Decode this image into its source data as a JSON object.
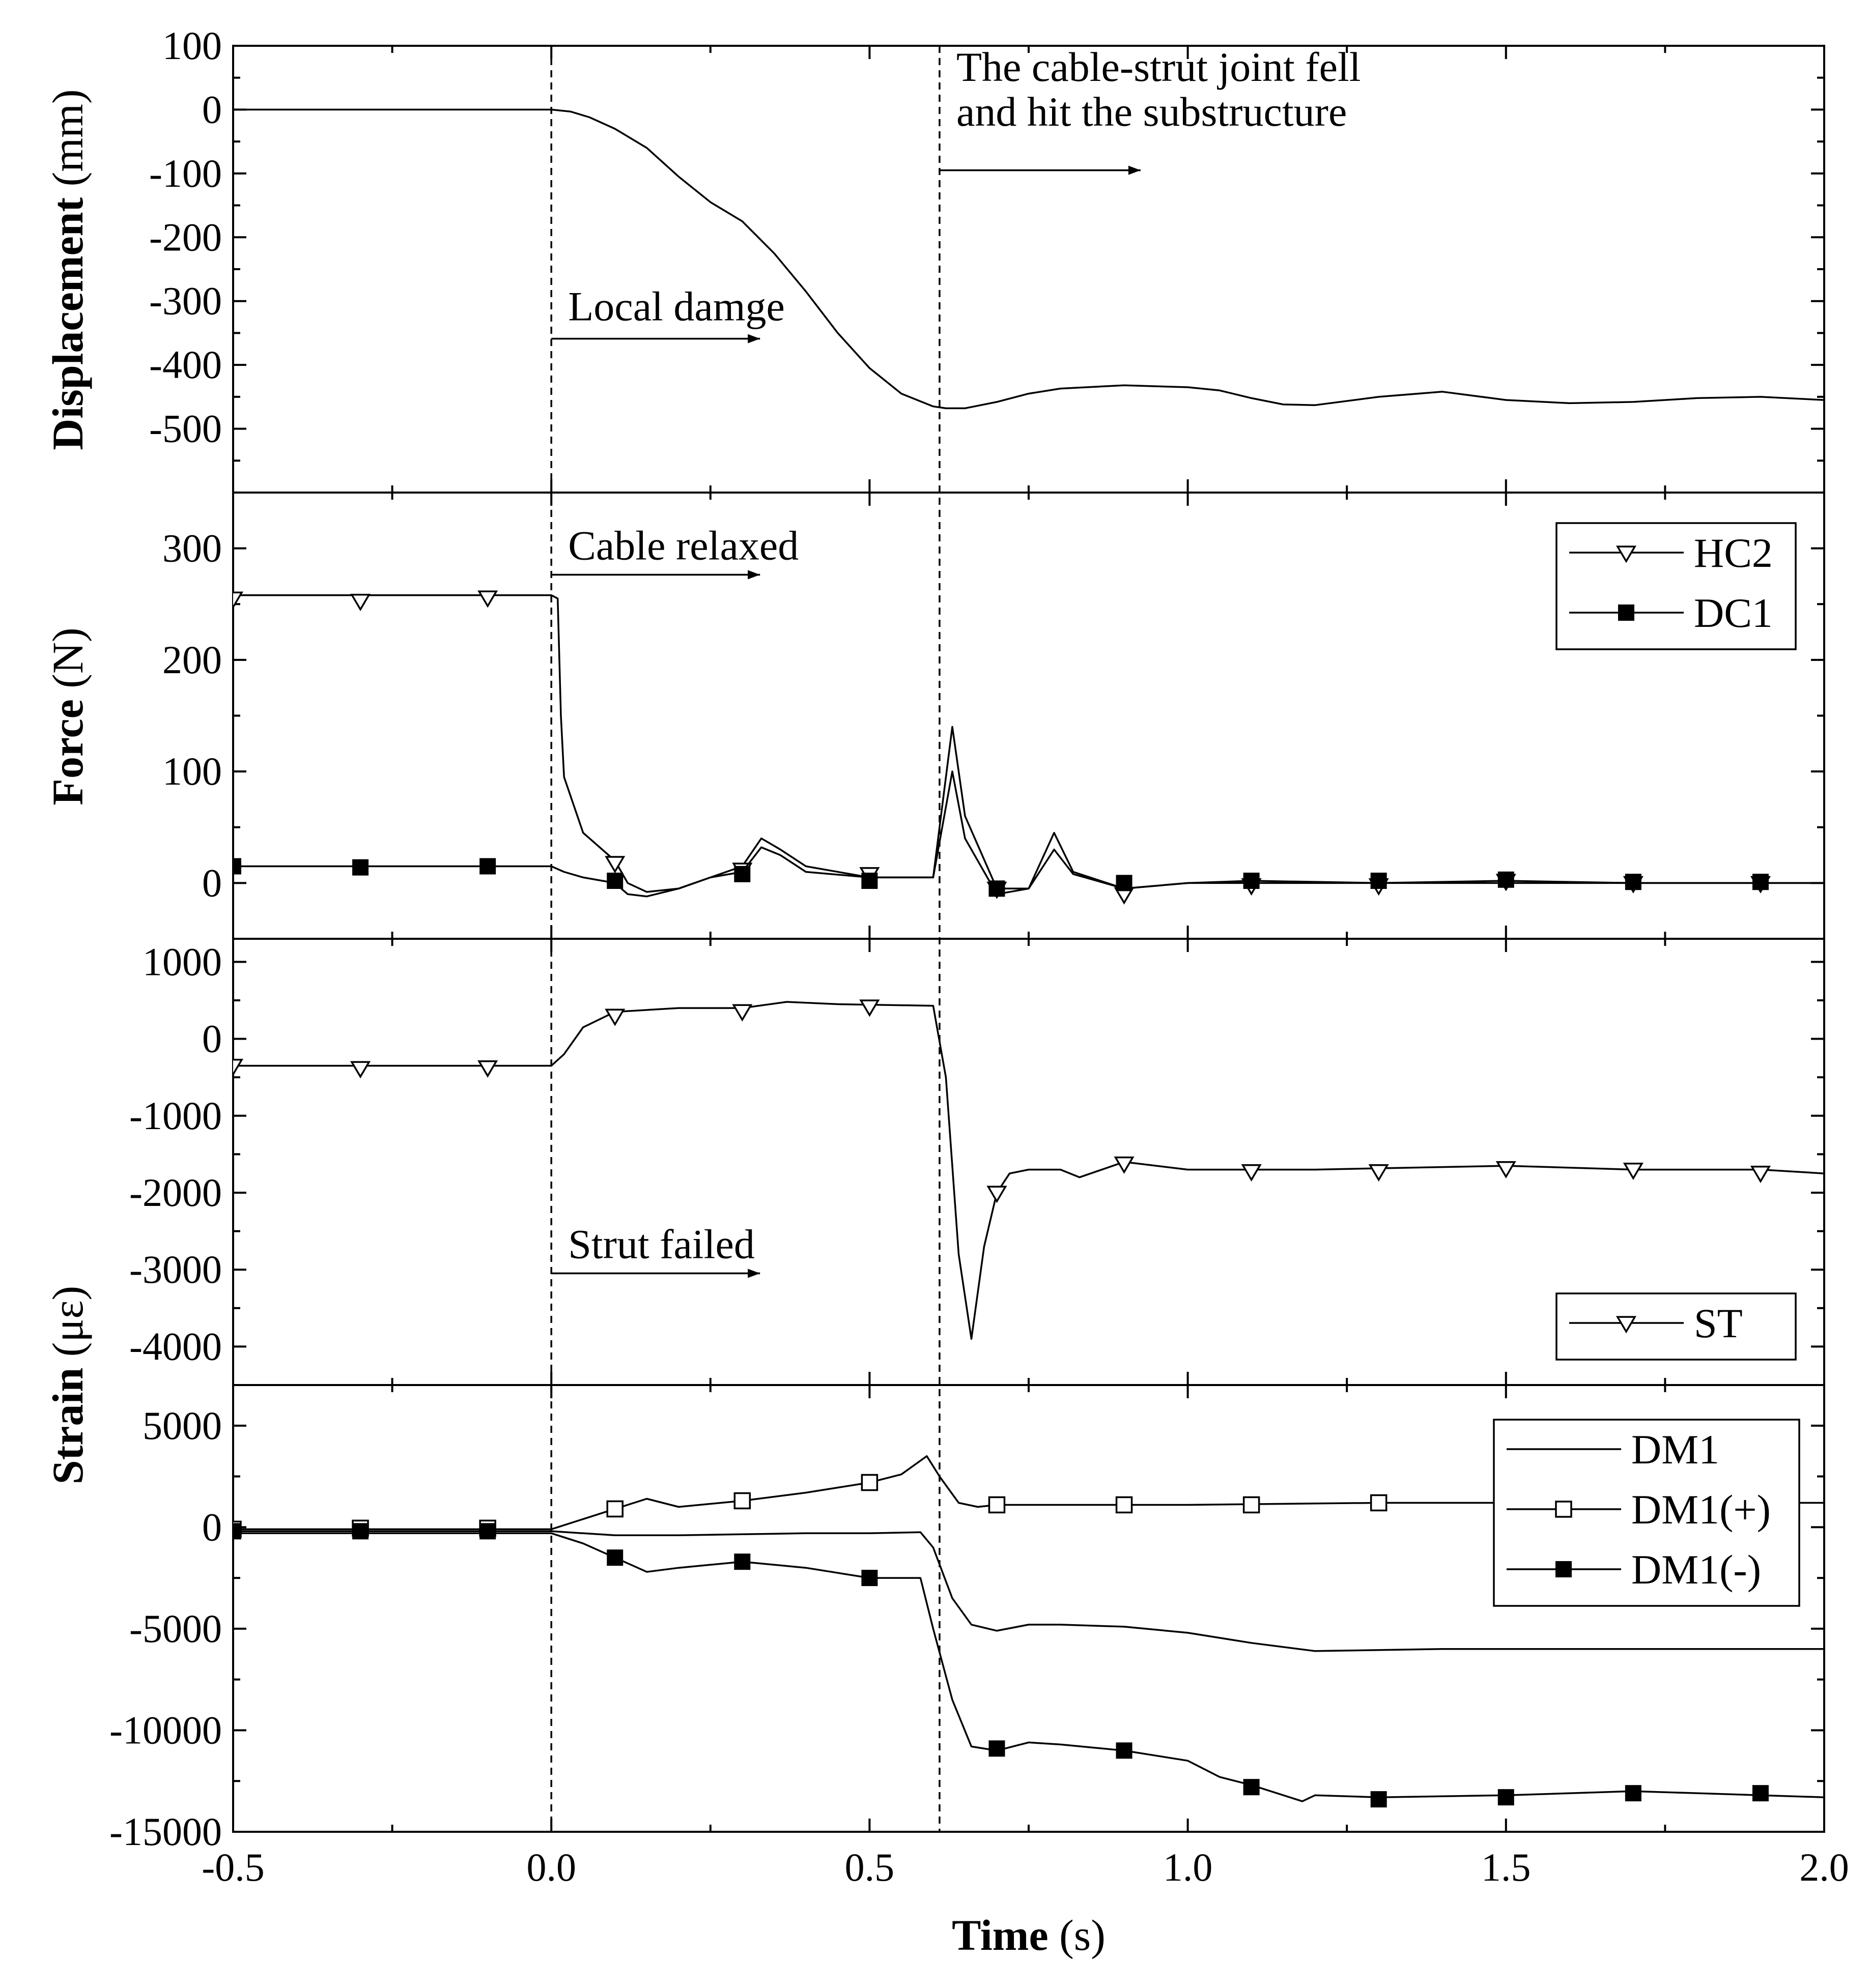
{
  "chart_data": [
    {
      "type": "line",
      "panel": "displacement",
      "ylabel_bold": "Displacement",
      "ylabel_unit": " (mm)",
      "ylim": [
        -600,
        100
      ],
      "yticks": [
        100,
        0,
        -100,
        -200,
        -300,
        -400,
        -500
      ],
      "ytick_labels": [
        "100",
        "0",
        "-100",
        "-200",
        "-300",
        "-400",
        "-500"
      ],
      "series": [
        {
          "name": "Displacement",
          "marker": "none",
          "x": [
            -0.5,
            -0.2,
            0.0,
            0.03,
            0.06,
            0.1,
            0.15,
            0.2,
            0.25,
            0.3,
            0.35,
            0.4,
            0.45,
            0.5,
            0.55,
            0.6,
            0.62,
            0.65,
            0.7,
            0.75,
            0.8,
            0.9,
            1.0,
            1.05,
            1.1,
            1.15,
            1.2,
            1.3,
            1.4,
            1.5,
            1.6,
            1.7,
            1.8,
            1.9,
            2.0
          ],
          "y": [
            0,
            0,
            0,
            -3,
            -12,
            -30,
            -60,
            -105,
            -145,
            -175,
            -225,
            -285,
            -350,
            -405,
            -445,
            -465,
            -468,
            -468,
            -458,
            -445,
            -437,
            -432,
            -435,
            -440,
            -452,
            -462,
            -463,
            -450,
            -442,
            -455,
            -460,
            -458,
            -452,
            -450,
            -455
          ]
        }
      ],
      "annotations": [
        {
          "text": "Local damge",
          "x": 0.02,
          "y": -330
        },
        {
          "text": "The cable-strut joint fell",
          "x": 0.63,
          "y": 45
        },
        {
          "text": "and hit the substructure",
          "x": 0.63,
          "y": -25
        }
      ]
    },
    {
      "type": "line",
      "panel": "force",
      "ylabel_bold": "Force",
      "ylabel_unit": " (N)",
      "ylim": [
        -50,
        350
      ],
      "yticks": [
        300,
        200,
        100,
        0
      ],
      "ytick_labels": [
        "300",
        "200",
        "100",
        "0"
      ],
      "legend": [
        "HC2",
        "DC1"
      ],
      "legend_position": "top-right",
      "series": [
        {
          "name": "HC2",
          "marker": "triangle-down-open",
          "x": [
            -0.5,
            -0.3,
            -0.1,
            0.0,
            0.01,
            0.015,
            0.02,
            0.05,
            0.1,
            0.12,
            0.15,
            0.2,
            0.25,
            0.3,
            0.33,
            0.36,
            0.4,
            0.5,
            0.6,
            0.63,
            0.65,
            0.7,
            0.75,
            0.79,
            0.82,
            0.9,
            1.0,
            1.1,
            1.3,
            1.5,
            1.7,
            1.9,
            2.0
          ],
          "y": [
            258,
            258,
            258,
            258,
            255,
            150,
            95,
            45,
            20,
            0,
            -8,
            -5,
            5,
            15,
            40,
            30,
            15,
            5,
            5,
            140,
            60,
            -5,
            -5,
            45,
            10,
            -5,
            0,
            0,
            0,
            0,
            0,
            0,
            0
          ],
          "marker_x": [
            -0.5,
            -0.3,
            -0.1,
            0.1,
            0.3,
            0.5,
            0.7,
            0.9,
            1.1,
            1.3,
            1.5,
            1.7,
            1.9
          ],
          "marker_y": [
            255,
            253,
            256,
            18,
            12,
            8,
            -5,
            -10,
            -2,
            -2,
            2,
            0,
            0
          ]
        },
        {
          "name": "DC1",
          "marker": "square-filled",
          "x": [
            -0.5,
            -0.3,
            -0.1,
            0.0,
            0.02,
            0.05,
            0.1,
            0.12,
            0.15,
            0.2,
            0.25,
            0.3,
            0.33,
            0.36,
            0.4,
            0.5,
            0.6,
            0.63,
            0.65,
            0.7,
            0.75,
            0.79,
            0.82,
            0.9,
            1.0,
            1.1,
            1.3,
            1.5,
            1.7,
            1.9,
            2.0
          ],
          "y": [
            15,
            15,
            15,
            15,
            10,
            5,
            0,
            -10,
            -12,
            -5,
            5,
            10,
            32,
            25,
            10,
            5,
            5,
            100,
            40,
            -10,
            -5,
            30,
            8,
            -5,
            0,
            2,
            0,
            2,
            0,
            0,
            0
          ],
          "marker_x": [
            -0.5,
            -0.3,
            -0.1,
            0.1,
            0.3,
            0.5,
            0.7,
            0.9,
            1.1,
            1.3,
            1.5,
            1.7,
            1.9
          ],
          "marker_y": [
            15,
            14,
            15,
            2,
            8,
            2,
            -5,
            0,
            2,
            2,
            3,
            1,
            1
          ]
        }
      ],
      "annotations": [
        {
          "text": "Cable relaxed",
          "x": 0.02,
          "y": 290
        }
      ]
    },
    {
      "type": "line",
      "panel": "strain-ST",
      "ylim": [
        -4500,
        1300
      ],
      "yticks": [
        1000,
        0,
        -1000,
        -2000,
        -3000,
        -4000
      ],
      "ytick_labels": [
        "1000",
        "0",
        "-1000",
        "-2000",
        "-3000",
        "-4000"
      ],
      "legend": [
        "ST"
      ],
      "legend_position": "bottom-right",
      "series": [
        {
          "name": "ST",
          "marker": "triangle-down-open",
          "x": [
            -0.5,
            -0.3,
            -0.1,
            0.0,
            0.02,
            0.05,
            0.1,
            0.2,
            0.3,
            0.37,
            0.45,
            0.6,
            0.62,
            0.64,
            0.66,
            0.68,
            0.7,
            0.72,
            0.75,
            0.8,
            0.83,
            0.9,
            1.0,
            1.2,
            1.5,
            1.7,
            1.9,
            2.0
          ],
          "y": [
            -350,
            -350,
            -350,
            -350,
            -200,
            150,
            350,
            400,
            400,
            480,
            450,
            430,
            -500,
            -2800,
            -3900,
            -2700,
            -2000,
            -1750,
            -1700,
            -1700,
            -1800,
            -1600,
            -1700,
            -1700,
            -1650,
            -1700,
            -1700,
            -1750
          ],
          "marker_x": [
            -0.5,
            -0.3,
            -0.1,
            0.1,
            0.3,
            0.5,
            0.7,
            0.9,
            1.1,
            1.3,
            1.5,
            1.7,
            1.9
          ],
          "marker_y": [
            -350,
            -380,
            -370,
            300,
            360,
            420,
            -2000,
            -1620,
            -1720,
            -1720,
            -1680,
            -1700,
            -1740
          ]
        }
      ],
      "annotations": [
        {
          "text": "Strut failed",
          "x": 0.02,
          "y": -2850
        }
      ]
    },
    {
      "type": "line",
      "panel": "strain-DM",
      "ylim": [
        -15000,
        7000
      ],
      "yticks": [
        5000,
        0,
        -5000,
        -10000,
        -15000
      ],
      "ytick_labels": [
        "5000",
        "0",
        "-5000",
        "-10000",
        "-15000"
      ],
      "shared_ylabel_bold": "Strain",
      "shared_ylabel_unit": " (με)",
      "legend": [
        "DM1",
        "DM1(+)",
        "DM1(-)"
      ],
      "legend_position": "top-right",
      "series": [
        {
          "name": "DM1",
          "marker": "none",
          "x": [
            -0.5,
            0.0,
            0.05,
            0.1,
            0.2,
            0.3,
            0.4,
            0.5,
            0.58,
            0.6,
            0.63,
            0.66,
            0.7,
            0.75,
            0.8,
            0.9,
            1.0,
            1.1,
            1.2,
            1.4,
            1.6,
            1.8,
            2.0
          ],
          "y": [
            -200,
            -200,
            -300,
            -400,
            -400,
            -350,
            -300,
            -300,
            -250,
            -1000,
            -3500,
            -4800,
            -5100,
            -4800,
            -4800,
            -4900,
            -5200,
            -5700,
            -6100,
            -6000,
            -6000,
            -6000,
            -6000
          ]
        },
        {
          "name": "DM1(+)",
          "marker": "square-open",
          "x": [
            -0.5,
            0.0,
            0.05,
            0.1,
            0.15,
            0.2,
            0.3,
            0.4,
            0.5,
            0.55,
            0.59,
            0.61,
            0.64,
            0.67,
            0.7,
            0.8,
            1.0,
            1.3,
            1.6,
            2.0
          ],
          "y": [
            -100,
            -100,
            400,
            900,
            1400,
            1000,
            1300,
            1700,
            2200,
            2600,
            3500,
            2500,
            1200,
            1000,
            1100,
            1100,
            1100,
            1200,
            1200,
            1200
          ],
          "marker_x": [
            -0.5,
            -0.3,
            -0.1,
            0.1,
            0.3,
            0.5,
            0.7,
            0.9,
            1.1,
            1.3
          ],
          "marker_y": [
            -100,
            -50,
            -50,
            900,
            1300,
            2200,
            1100,
            1100,
            1100,
            1200
          ]
        },
        {
          "name": "DM1(-)",
          "marker": "square-filled",
          "x": [
            -0.5,
            0.0,
            0.05,
            0.1,
            0.15,
            0.2,
            0.3,
            0.4,
            0.5,
            0.58,
            0.6,
            0.63,
            0.66,
            0.7,
            0.75,
            0.8,
            0.9,
            1.0,
            1.05,
            1.1,
            1.18,
            1.2,
            1.3,
            1.5,
            1.7,
            2.0
          ],
          "y": [
            -300,
            -300,
            -800,
            -1500,
            -2200,
            -2000,
            -1700,
            -2000,
            -2500,
            -2500,
            -5000,
            -8500,
            -10800,
            -11000,
            -10600,
            -10700,
            -11000,
            -11500,
            -12300,
            -12700,
            -13500,
            -13200,
            -13300,
            -13200,
            -13000,
            -13300
          ],
          "marker_x": [
            -0.5,
            -0.3,
            -0.1,
            0.1,
            0.3,
            0.5,
            0.7,
            0.9,
            1.1,
            1.3,
            1.5,
            1.7,
            1.9
          ],
          "marker_y": [
            -200,
            -200,
            -200,
            -1500,
            -1700,
            -2500,
            -10900,
            -11000,
            -12800,
            -13400,
            -13300,
            -13100,
            -13100
          ]
        }
      ]
    }
  ],
  "xaxis": {
    "xlim": [
      -0.5,
      2.0
    ],
    "xticks": [
      -0.5,
      0.0,
      0.5,
      1.0,
      1.5,
      2.0
    ],
    "xtick_labels": [
      "-0.5",
      "0.0",
      "0.5",
      "1.0",
      "1.5",
      "2.0"
    ],
    "xlabel_bold": "Time",
    "xlabel_unit": " (s)"
  },
  "vertical_lines_x": [
    0.0,
    0.61
  ]
}
